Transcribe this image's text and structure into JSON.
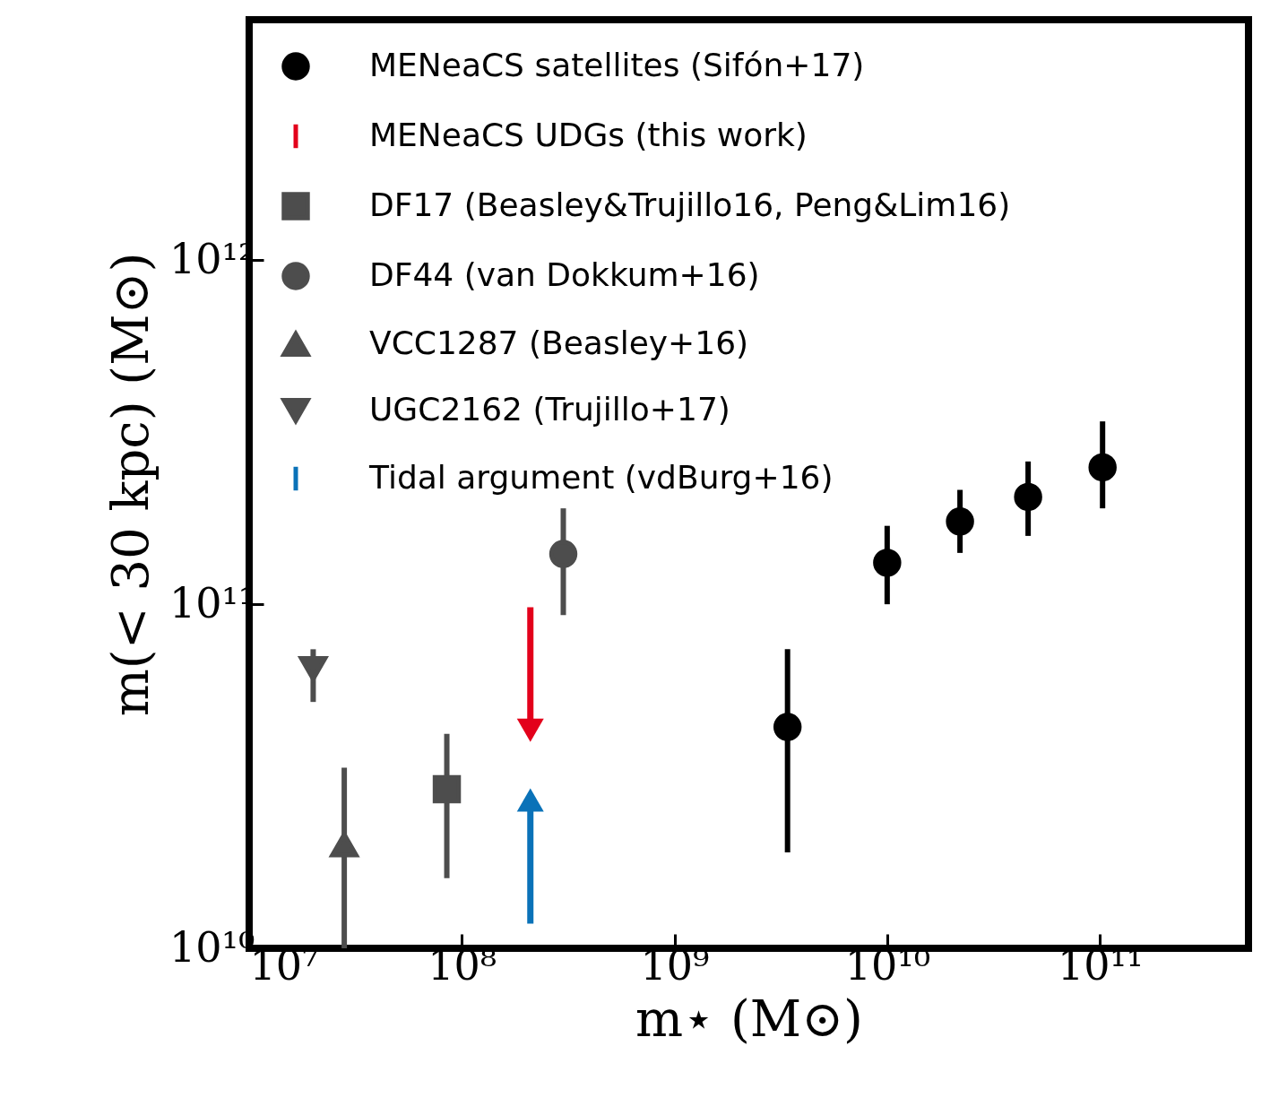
{
  "chart_data": {
    "type": "scatter",
    "xlabel": "m⋆ (M⊙)",
    "ylabel": "m(< 30 kpc) (M⊙)",
    "log": "xy",
    "xlim": [
      10000000.0,
      500000000000.0
    ],
    "ylim": [
      10000000000.0,
      5000000000000.0
    ],
    "xticks": [
      {
        "value": 10000000.0,
        "label": "10⁷"
      },
      {
        "value": 100000000.0,
        "label": "10⁸"
      },
      {
        "value": 1000000000.0,
        "label": "10⁹"
      },
      {
        "value": 10000000000.0,
        "label": "10¹⁰"
      },
      {
        "value": 100000000000.0,
        "label": "10¹¹"
      }
    ],
    "yticks": [
      {
        "value": 10000000000.0,
        "label": "10¹⁰"
      },
      {
        "value": 100000000000.0,
        "label": "10¹¹"
      },
      {
        "value": 1000000000000.0,
        "label": "10¹²"
      }
    ],
    "grid": false,
    "legend": "top left",
    "series": [
      {
        "name": "MENeaCS satellites (Sifón+17)",
        "color": "#000000",
        "marker": "circle",
        "x": [
          3400000000.0,
          10000000000.0,
          22000000000.0,
          46000000000.0,
          103000000000.0
        ],
        "values": [
          44000000000.0,
          132000000000.0,
          174000000000.0,
          205000000000.0,
          250000000000.0
        ],
        "errors": [
          [
            19000000000.0,
            74000000000.0
          ],
          [
            100000000000.0,
            169000000000.0
          ],
          [
            141000000000.0,
            215000000000.0
          ],
          [
            158000000000.0,
            260000000000.0
          ],
          [
            190000000000.0,
            340000000000.0
          ]
        ]
      },
      {
        "name": "MENeaCS UDGs (this work)",
        "color": "#e3001b",
        "type": "line",
        "x": [
          210000000.0,
          210000000.0
        ],
        "values": [
          98000000000.0,
          43000000000.0
        ]
      },
      {
        "name": "DF17 (Beasley&Trujillo16, Peng&Lim16)",
        "color": "#4d4d4d",
        "marker": "square",
        "x": [
          85000000.0
        ],
        "values": [
          29000000000.0
        ],
        "errors": [
          [
            16000000000.0,
            42000000000.0
          ]
        ]
      },
      {
        "name": "DF44 (van Dokkum+16)",
        "color": "#4d4d4d",
        "marker": "circle",
        "x": [
          300000000.0
        ],
        "values": [
          140000000000.0
        ],
        "errors": [
          [
            93000000000.0,
            190000000000.0
          ]
        ]
      },
      {
        "name": "VCC1287 (Beasley+16)",
        "color": "#4d4d4d",
        "marker": "triangle",
        "x": [
          28000000.0
        ],
        "values": [
          20000000000.0
        ],
        "errors": [
          [
            10000000000.0,
            33500000000.0
          ]
        ]
      },
      {
        "name": "UGC2162 (Trujillo+17)",
        "color": "#4d4d4d",
        "marker": "triangle-down",
        "x": [
          20000000.0
        ],
        "values": [
          65000000000.0
        ],
        "errors": [
          [
            52000000000.0,
            74000000000.0
          ]
        ]
      },
      {
        "name": "Tidal argument (vdBurg+16)",
        "color": "#0a72b8",
        "type": "line",
        "x": [
          210000000.0,
          210000000.0
        ],
        "values": [
          11800000000.0,
          27000000000.0
        ]
      }
    ]
  }
}
